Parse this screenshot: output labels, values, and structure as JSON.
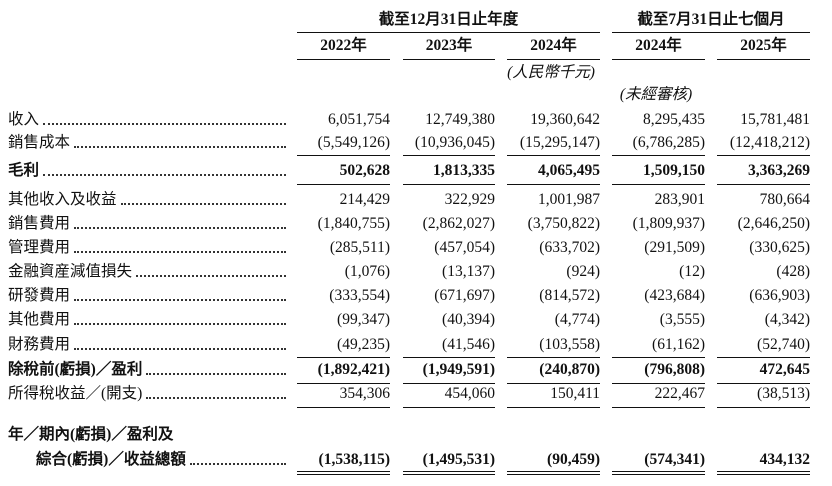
{
  "header": {
    "groups": [
      "截至12月31日止年度",
      "截至7月31日止七個月"
    ],
    "years": [
      "2022年",
      "2023年",
      "2024年",
      "2024年",
      "2025年"
    ],
    "unit_note": "(人民幣千元)",
    "audit_note": "(未經審核)"
  },
  "table": {
    "rows": [
      {
        "label": "收入",
        "values": [
          "6,051,754",
          "12,749,380",
          "19,360,642",
          "8,295,435",
          "15,781,481"
        ]
      },
      {
        "label": "銷售成本",
        "values": [
          "(5,549,126)",
          "(10,936,045)",
          "(15,295,147)",
          "(6,786,285)",
          "(12,418,212)"
        ]
      },
      {
        "label": "毛利",
        "bold": true,
        "values": [
          "502,628",
          "1,813,335",
          "4,065,495",
          "1,509,150",
          "3,363,269"
        ]
      },
      {
        "label": "其他收入及收益",
        "values": [
          "214,429",
          "322,929",
          "1,001,987",
          "283,901",
          "780,664"
        ]
      },
      {
        "label": "銷售費用",
        "values": [
          "(1,840,755)",
          "(2,862,027)",
          "(3,750,822)",
          "(1,809,937)",
          "(2,646,250)"
        ]
      },
      {
        "label": "管理費用",
        "values": [
          "(285,511)",
          "(457,054)",
          "(633,702)",
          "(291,509)",
          "(330,625)"
        ]
      },
      {
        "label": "金融資産減值損失",
        "values": [
          "(1,076)",
          "(13,137)",
          "(924)",
          "(12)",
          "(428)"
        ]
      },
      {
        "label": "研發費用",
        "values": [
          "(333,554)",
          "(671,697)",
          "(814,572)",
          "(423,684)",
          "(636,903)"
        ]
      },
      {
        "label": "其他費用",
        "values": [
          "(99,347)",
          "(40,394)",
          "(4,774)",
          "(3,555)",
          "(4,342)"
        ]
      },
      {
        "label": "財務費用",
        "values": [
          "(49,235)",
          "(41,546)",
          "(103,558)",
          "(61,162)",
          "(52,740)"
        ]
      },
      {
        "label": "除稅前(虧損)／盈利",
        "bold": true,
        "values": [
          "(1,892,421)",
          "(1,949,591)",
          "(240,870)",
          "(796,808)",
          "472,645"
        ]
      },
      {
        "label": "所得稅收益／(開支)",
        "values": [
          "354,306",
          "454,060",
          "150,411",
          "222,467",
          "(38,513)"
        ]
      },
      {
        "label": "年／期內(虧損)／盈利及",
        "bold": true
      },
      {
        "label": "綜合(虧損)／收益總額",
        "bold": true,
        "values": [
          "(1,538,115)",
          "(1,495,531)",
          "(90,459)",
          "(574,341)",
          "434,132"
        ]
      }
    ]
  }
}
